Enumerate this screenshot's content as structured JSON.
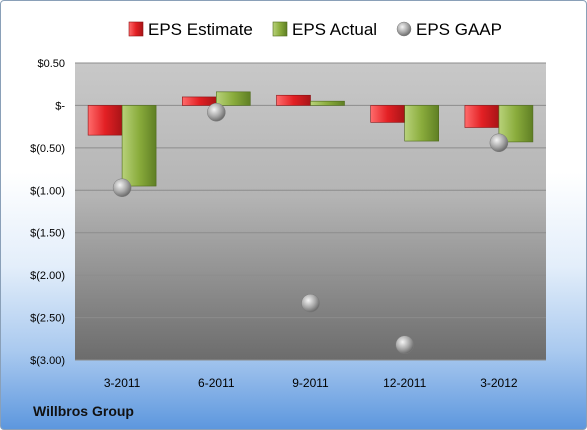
{
  "company": "Willbros Group",
  "chart_data": {
    "type": "bar",
    "categories": [
      "3-2011",
      "6-2011",
      "9-2011",
      "12-2011",
      "3-2012"
    ],
    "series": [
      {
        "name": "EPS Estimate",
        "values": [
          -0.35,
          0.1,
          0.12,
          -0.2,
          -0.26
        ],
        "color": "#e32024"
      },
      {
        "name": "EPS Actual",
        "values": [
          -0.95,
          0.16,
          0.05,
          -0.42,
          -0.43
        ],
        "color": "#8aac3c"
      },
      {
        "name": "EPS GAAP",
        "values": [
          -0.97,
          -0.08,
          -2.33,
          -2.82,
          -0.44
        ],
        "color": "#a6a6a6",
        "marker": "sphere"
      }
    ],
    "ylim": [
      -3.0,
      0.5
    ],
    "yticks": [
      0.5,
      0,
      -0.5,
      -1.0,
      -1.5,
      -2.0,
      -2.5,
      -3.0
    ],
    "ytick_labels": [
      "$0.50",
      "$-",
      "$(0.50)",
      "$(1.00)",
      "$(1.50)",
      "$(2.00)",
      "$(2.50)",
      "$(3.00)"
    ],
    "grid": true,
    "legend_position": "top"
  }
}
